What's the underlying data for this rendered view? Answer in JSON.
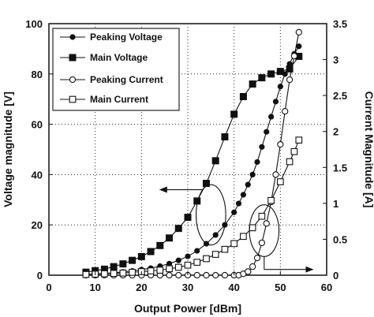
{
  "chart_data": {
    "type": "line",
    "xlabel": "Output Power [dBm]",
    "ylabel_left": "Voltage magnitude [V]",
    "ylabel_right": "Current Magnitude [A]",
    "xlim": [
      0,
      60
    ],
    "ylim_left": [
      0,
      100
    ],
    "ylim_right": [
      0,
      3.5
    ],
    "x_ticks": [
      "0",
      "10",
      "20",
      "30",
      "40",
      "50",
      "60"
    ],
    "y_left_ticks": [
      "0",
      "20",
      "40",
      "60",
      "80",
      "100"
    ],
    "y_right_ticks": [
      "0",
      "0.5",
      "1",
      "1.5",
      "2",
      "2.5",
      "3",
      "3.5"
    ],
    "grid": "dotted",
    "legend_position": "top-left",
    "series": [
      {
        "name": "Peaking Voltage",
        "axis": "left",
        "marker": "filled-circle",
        "x": [
          8,
          10,
          12,
          14,
          16,
          18,
          20,
          22,
          24,
          26,
          28,
          30,
          32,
          34,
          36,
          38,
          40,
          41,
          42,
          43,
          44,
          45,
          46,
          47,
          48,
          49,
          50,
          51,
          52,
          53,
          54
        ],
        "values": [
          0.3,
          0.5,
          0.7,
          1.0,
          1.3,
          1.7,
          2.2,
          2.8,
          3.6,
          4.6,
          5.9,
          7.5,
          9.7,
          12.5,
          16.0,
          20.0,
          25.0,
          28.5,
          32.0,
          36.0,
          40.0,
          45.0,
          51.0,
          57.0,
          63.0,
          69.0,
          75.0,
          80.0,
          84.0,
          88.0,
          91.0
        ]
      },
      {
        "name": "Main Voltage",
        "axis": "left",
        "marker": "filled-square",
        "x": [
          8,
          10,
          12,
          14,
          16,
          18,
          20,
          22,
          24,
          26,
          28,
          30,
          32,
          34,
          36,
          38,
          40,
          42,
          44,
          46,
          48,
          50,
          52,
          54
        ],
        "values": [
          1.2,
          1.8,
          2.4,
          3.4,
          4.5,
          5.9,
          7.4,
          9.4,
          11.8,
          14.8,
          18.6,
          23.0,
          29.5,
          36.5,
          45.5,
          55.0,
          64.0,
          71.0,
          76.0,
          78.5,
          80.0,
          81.0,
          82.0,
          87.0
        ]
      },
      {
        "name": "Peaking Current",
        "axis": "right",
        "marker": "open-circle",
        "x": [
          8,
          10,
          12,
          14,
          16,
          18,
          20,
          22,
          24,
          26,
          28,
          30,
          32,
          34,
          36,
          38,
          40,
          41,
          42,
          43,
          44,
          45,
          46,
          47,
          48,
          49,
          50,
          51,
          52,
          53,
          54
        ],
        "values": [
          0,
          0,
          0,
          0,
          0,
          0,
          0,
          0,
          0,
          0,
          0,
          0,
          0,
          0,
          0,
          0,
          0,
          0,
          0.02,
          0.05,
          0.12,
          0.24,
          0.45,
          0.72,
          1.02,
          1.4,
          1.82,
          2.28,
          2.72,
          3.05,
          3.38
        ]
      },
      {
        "name": "Main Current",
        "axis": "right",
        "marker": "open-square",
        "x": [
          8,
          10,
          12,
          14,
          16,
          18,
          20,
          22,
          24,
          26,
          28,
          30,
          32,
          34,
          36,
          38,
          40,
          42,
          44,
          46,
          48,
          50,
          52,
          53,
          54
        ],
        "values": [
          0.01,
          0.015,
          0.02,
          0.025,
          0.03,
          0.04,
          0.05,
          0.06,
          0.07,
          0.09,
          0.11,
          0.14,
          0.18,
          0.23,
          0.29,
          0.36,
          0.44,
          0.54,
          0.66,
          0.82,
          1.04,
          1.3,
          1.58,
          1.72,
          1.88
        ]
      }
    ],
    "annotations": [
      {
        "shape": "ellipse",
        "center": [
          35,
          24
        ],
        "rx_data": 3.2,
        "ry_data": 12,
        "arrow_to": [
          24,
          34
        ],
        "meaning": "arrow points to left (Voltage) axis"
      },
      {
        "shape": "ellipse",
        "center": [
          46.5,
          0.62
        ],
        "rx_data": 3.2,
        "ry_data": 0.36,
        "arrow_to": [
          57,
          0.08
        ],
        "meaning": "arrow points to right (Current) axis"
      }
    ]
  }
}
